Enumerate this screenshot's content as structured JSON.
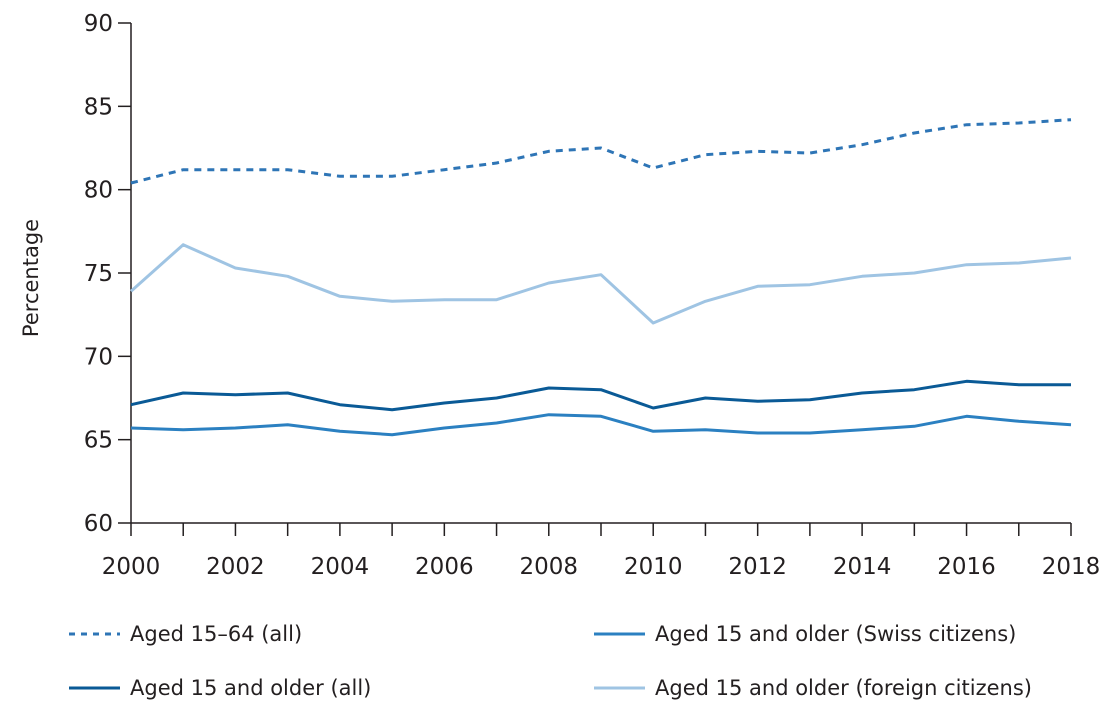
{
  "chart_data": {
    "type": "line",
    "title": "",
    "xlabel": "",
    "ylabel": "Percentage",
    "x": [
      2000,
      2001,
      2002,
      2003,
      2004,
      2005,
      2006,
      2007,
      2008,
      2009,
      2010,
      2011,
      2012,
      2013,
      2014,
      2015,
      2016,
      2017,
      2018
    ],
    "xlim": [
      2000,
      2018
    ],
    "ylim": [
      60,
      90
    ],
    "x_ticks": [
      "2000",
      "2002",
      "2004",
      "2006",
      "2008",
      "2010",
      "2012",
      "2014",
      "2016",
      "2018"
    ],
    "y_ticks": [
      "60",
      "65",
      "70",
      "75",
      "80",
      "85",
      "90"
    ],
    "grid": false,
    "legend_position": "bottom",
    "series": [
      {
        "name": "Aged 15–64 (all)",
        "color": "#2e75b6",
        "dash": "dashed",
        "values": [
          80.4,
          81.2,
          81.2,
          81.2,
          80.8,
          80.8,
          81.2,
          81.6,
          82.3,
          82.5,
          81.3,
          82.1,
          82.3,
          82.2,
          82.7,
          83.4,
          83.9,
          84.0,
          84.2
        ]
      },
      {
        "name": "Aged 15 and older (all)",
        "color": "#0a5a96",
        "dash": "solid",
        "values": [
          67.1,
          67.8,
          67.7,
          67.8,
          67.1,
          66.8,
          67.2,
          67.5,
          68.1,
          68.0,
          66.9,
          67.5,
          67.3,
          67.4,
          67.8,
          68.0,
          68.5,
          68.3,
          68.3
        ]
      },
      {
        "name": "Aged 15 and older (Swiss citizens)",
        "color": "#2b80c1",
        "dash": "solid",
        "values": [
          65.7,
          65.6,
          65.7,
          65.9,
          65.5,
          65.3,
          65.7,
          66.0,
          66.5,
          66.4,
          65.5,
          65.6,
          65.4,
          65.4,
          65.6,
          65.8,
          66.4,
          66.1,
          65.9
        ]
      },
      {
        "name": "Aged 15 and older (foreign citizens)",
        "color": "#9fc4e3",
        "dash": "solid",
        "values": [
          73.9,
          76.7,
          75.3,
          74.8,
          73.6,
          73.3,
          73.4,
          73.4,
          74.4,
          74.9,
          72.0,
          73.3,
          74.2,
          74.3,
          74.8,
          75.0,
          75.5,
          75.6,
          75.9
        ]
      }
    ]
  }
}
